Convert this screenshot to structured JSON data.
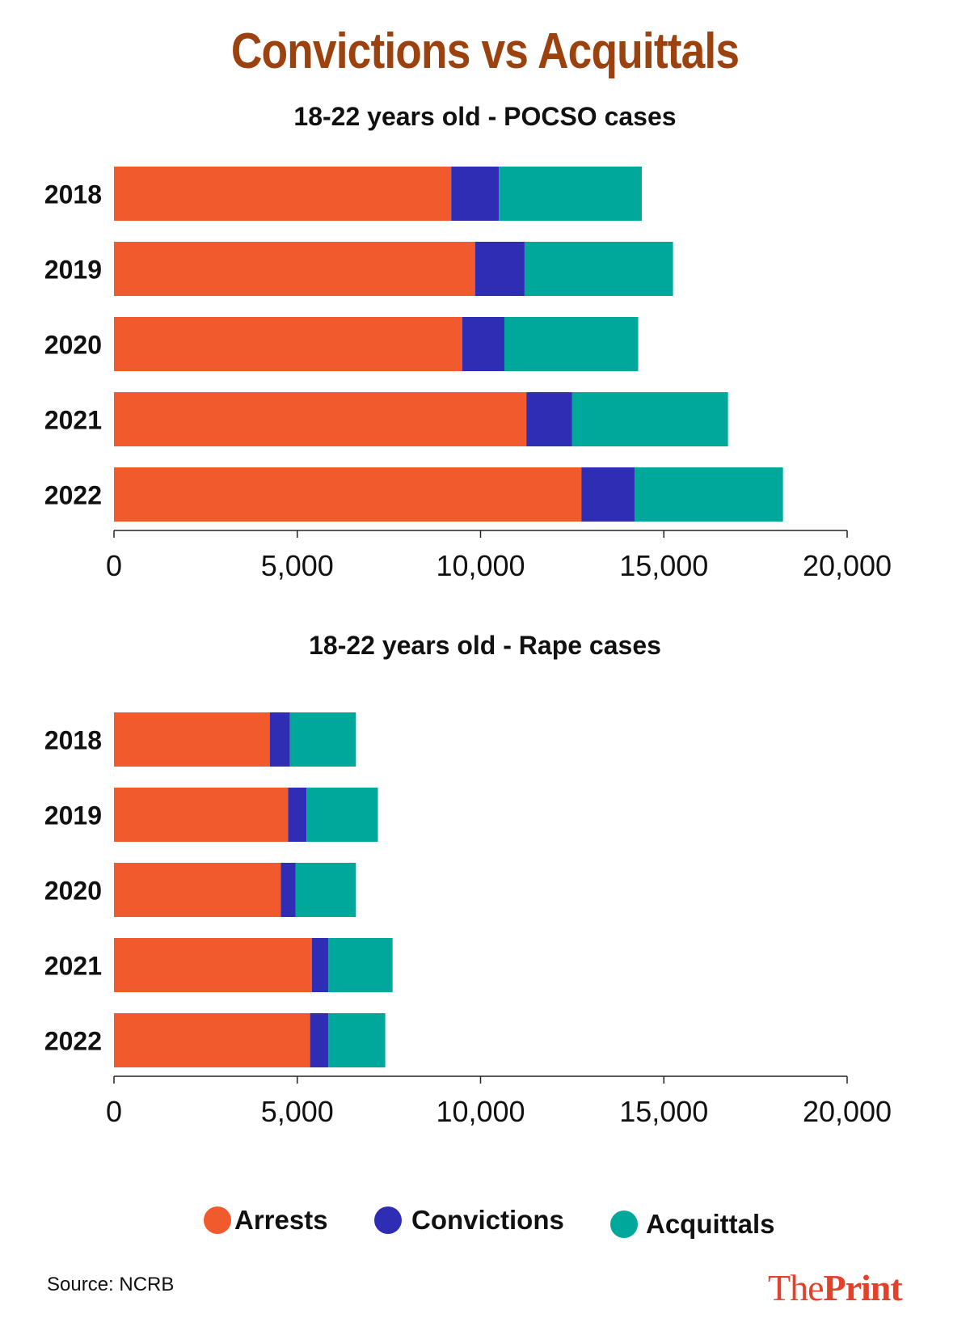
{
  "title": "Convictions vs Acquittals",
  "legend": {
    "arrests": "Arrests",
    "convictions": "Convictions",
    "acquittals": "Acquittals"
  },
  "colors": {
    "arrests": "#f05a2d",
    "convictions": "#2e2db4",
    "acquittals": "#00a89c",
    "title": "#9c420e",
    "brand": "#e2422a"
  },
  "source": "Source: NCRB",
  "brand": {
    "part1": "The",
    "part2": "Print"
  },
  "chart_data": [
    {
      "type": "bar",
      "orientation": "horizontal",
      "stacked": true,
      "title": "18-22 years old - POCSO cases",
      "categories": [
        "2018",
        "2019",
        "2020",
        "2021",
        "2022"
      ],
      "series": [
        {
          "name": "Arrests",
          "values": [
            9200,
            9850,
            9500,
            11250,
            12750
          ]
        },
        {
          "name": "Convictions",
          "values": [
            1300,
            1350,
            1150,
            1250,
            1450
          ]
        },
        {
          "name": "Acquittals",
          "values": [
            3900,
            4050,
            3650,
            4250,
            4050
          ]
        }
      ],
      "xlim": [
        0,
        20000
      ],
      "xticks": [
        "0",
        "5,000",
        "10,000",
        "15,000",
        "20,000"
      ],
      "grid": false
    },
    {
      "type": "bar",
      "orientation": "horizontal",
      "stacked": true,
      "title": "18-22 years old - Rape cases",
      "categories": [
        "2018",
        "2019",
        "2020",
        "2021",
        "2022"
      ],
      "series": [
        {
          "name": "Arrests",
          "values": [
            4250,
            4750,
            4550,
            5400,
            5350
          ]
        },
        {
          "name": "Convictions",
          "values": [
            550,
            500,
            400,
            450,
            500
          ]
        },
        {
          "name": "Acquittals",
          "values": [
            1800,
            1950,
            1650,
            1750,
            1550
          ]
        }
      ],
      "xlim": [
        0,
        20000
      ],
      "xticks": [
        "0",
        "5,000",
        "10,000",
        "15,000",
        "20,000"
      ],
      "grid": false
    }
  ]
}
